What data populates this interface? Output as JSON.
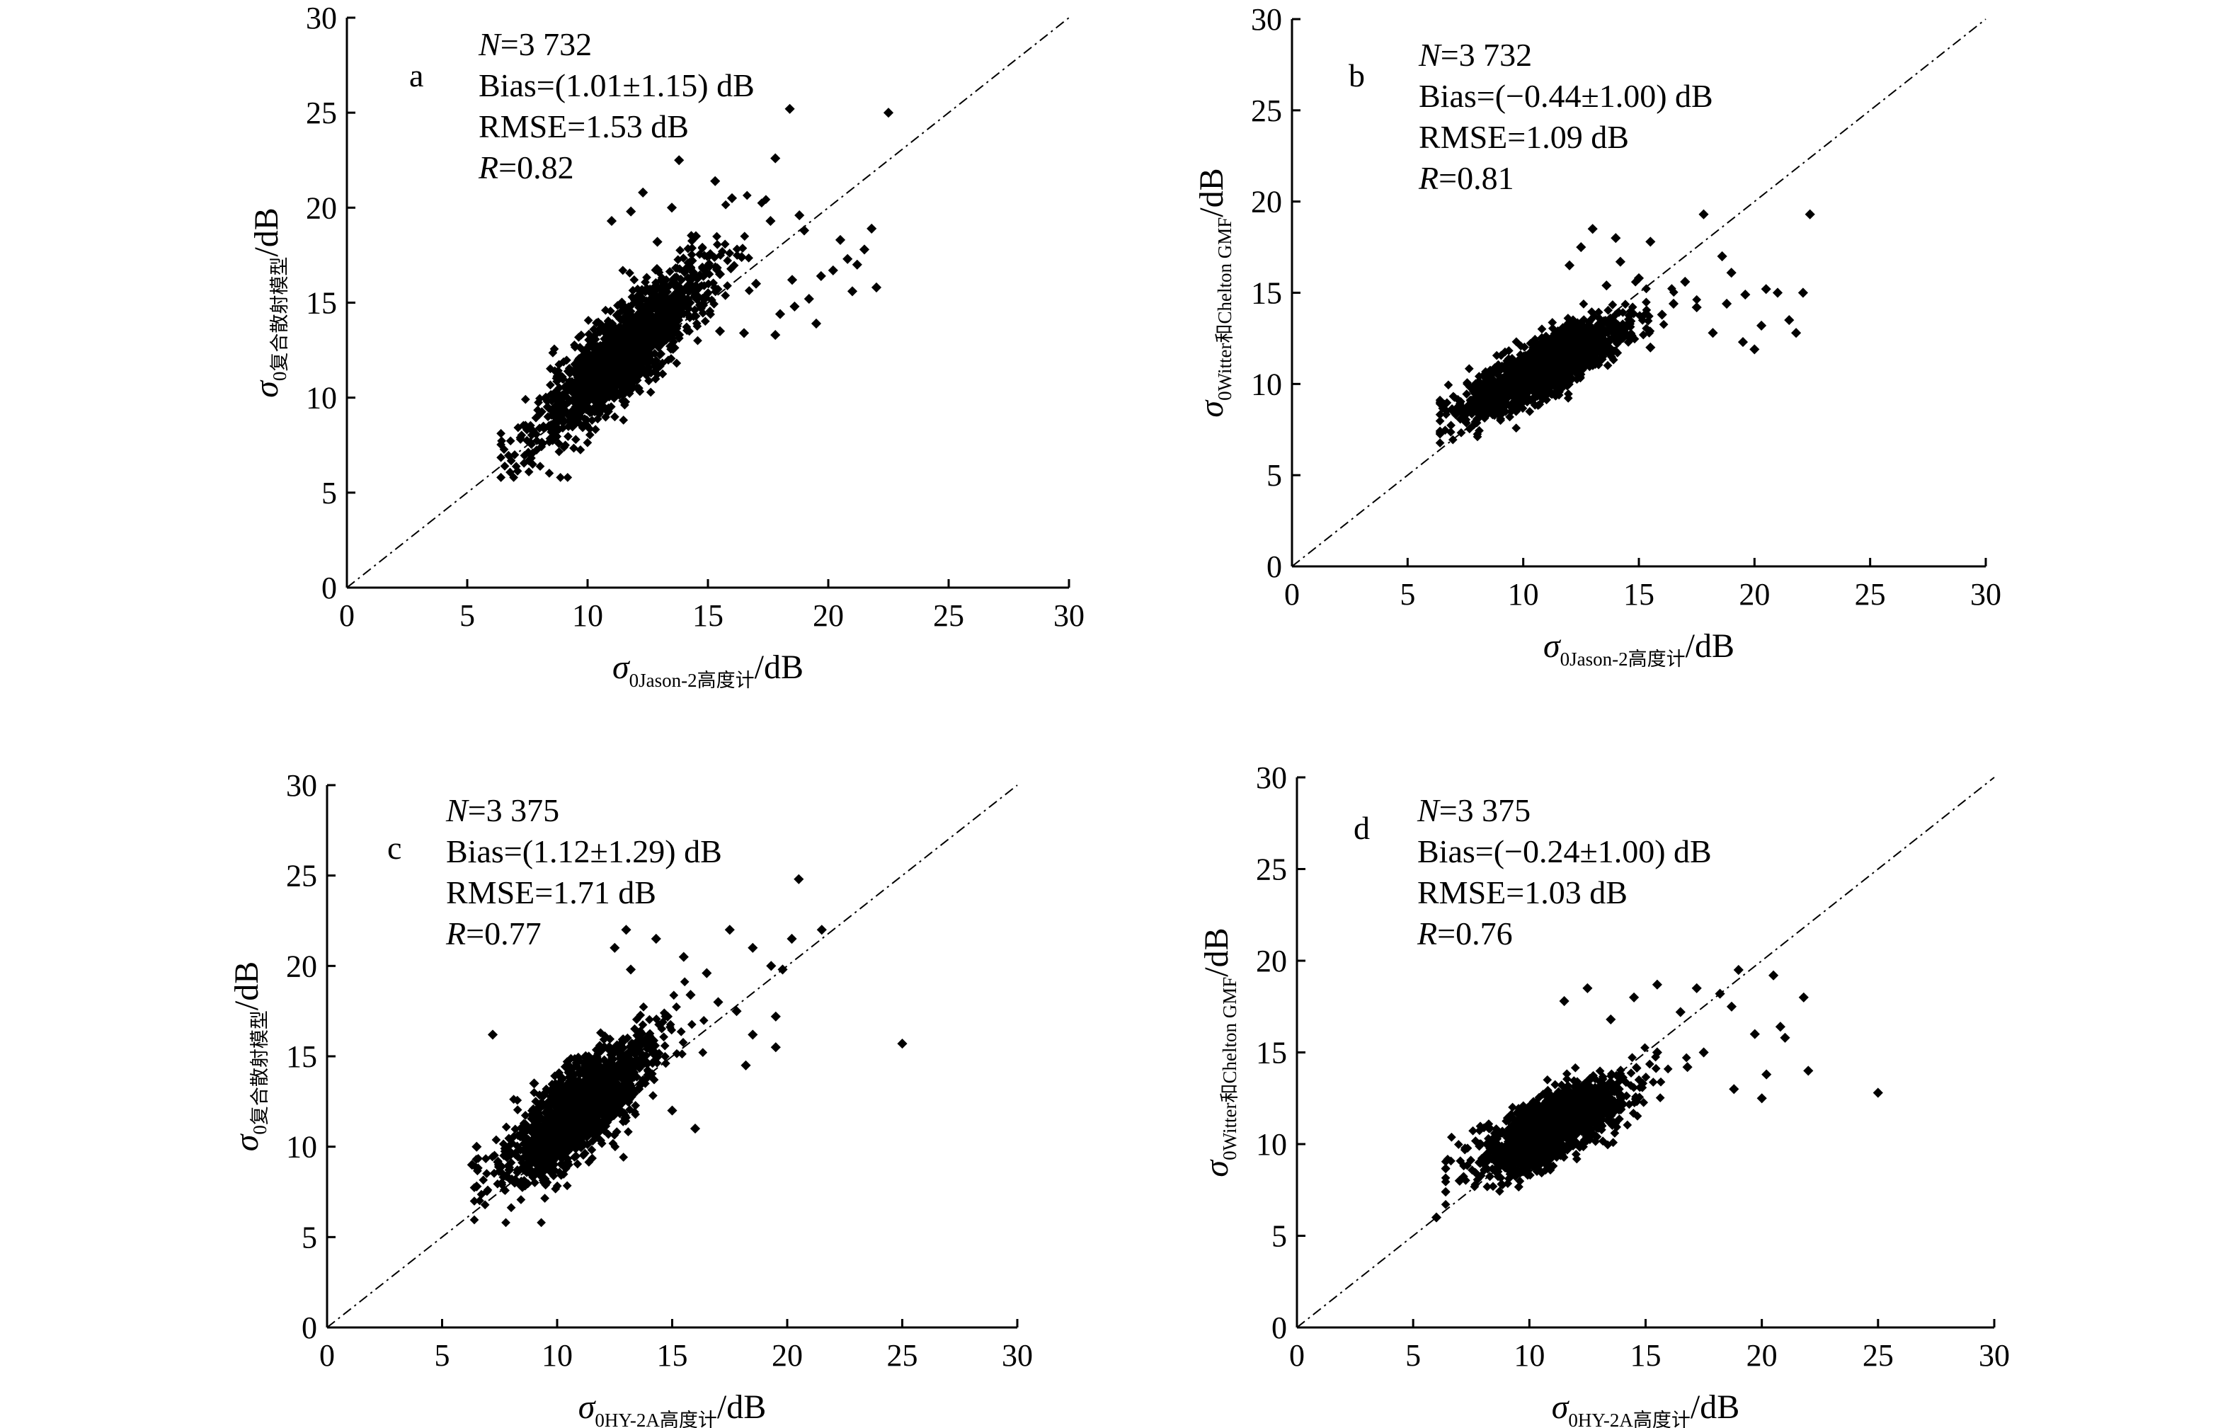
{
  "chart_data": [
    {
      "type": "scatter",
      "panel_label": "a",
      "annotations": {
        "n": "3 732",
        "bias": "(1.01±1.15) dB",
        "rmse": "1.53 dB",
        "r": "0.82"
      },
      "xlabel": {
        "symbol": "σ",
        "subscript": "0Jason-2高度计",
        "unit": "/dB"
      },
      "ylabel": {
        "symbol": "σ",
        "subscript": "0复合散射模型",
        "unit": "/dB"
      },
      "xlim": [
        0,
        30
      ],
      "ylim": [
        0,
        30
      ],
      "xticks": [
        0,
        5,
        10,
        15,
        20,
        25,
        30
      ],
      "yticks": [
        0,
        5,
        10,
        15,
        20,
        25,
        30
      ],
      "reference_line": "1:1",
      "cloud": {
        "x_mean": 11.6,
        "x_sd": 1.7,
        "slope": 1.1,
        "intercept": -0.2,
        "noise": 1.15,
        "dense_count": 1700
      },
      "points": [
        [
          13.8,
          22.5
        ],
        [
          15.3,
          21.4
        ],
        [
          17.8,
          22.6
        ],
        [
          18.4,
          25.2
        ],
        [
          22.5,
          25.0
        ],
        [
          16.0,
          20.5
        ],
        [
          17.6,
          19.3
        ],
        [
          18.8,
          19.6
        ],
        [
          19.0,
          18.8
        ],
        [
          20.5,
          18.3
        ],
        [
          21.2,
          17.0
        ],
        [
          21.5,
          17.8
        ],
        [
          21.8,
          18.9
        ],
        [
          22.0,
          15.8
        ],
        [
          21.0,
          15.6
        ],
        [
          19.7,
          16.4
        ],
        [
          19.2,
          15.2
        ],
        [
          18.5,
          16.2
        ],
        [
          18.0,
          14.4
        ],
        [
          20.2,
          16.7
        ],
        [
          17.0,
          16.0
        ],
        [
          16.4,
          17.4
        ],
        [
          15.5,
          16.5
        ],
        [
          14.8,
          16.8
        ],
        [
          13.5,
          20.0
        ],
        [
          14.5,
          18.5
        ],
        [
          12.9,
          18.2
        ],
        [
          11.8,
          19.8
        ],
        [
          11.0,
          19.3
        ],
        [
          12.3,
          20.8
        ],
        [
          16.5,
          13.4
        ],
        [
          15.5,
          13.5
        ],
        [
          17.8,
          13.3
        ],
        [
          18.6,
          14.8
        ],
        [
          19.5,
          13.9
        ],
        [
          20.8,
          17.3
        ]
      ]
    },
    {
      "type": "scatter",
      "panel_label": "b",
      "annotations": {
        "n": "3 732",
        "bias": "(−0.44±1.00) dB",
        "rmse": "1.09 dB",
        "r": "0.81"
      },
      "xlabel": {
        "symbol": "σ",
        "subscript": "0Jason-2高度计",
        "unit": "/dB"
      },
      "ylabel": {
        "symbol": "σ",
        "subscript": "0Witter和Chelton GMF",
        "unit": "/dB"
      },
      "xlim": [
        0,
        30
      ],
      "ylim": [
        0,
        30
      ],
      "xticks": [
        0,
        5,
        10,
        15,
        20,
        25,
        30
      ],
      "yticks": [
        0,
        5,
        10,
        15,
        20,
        25,
        30
      ],
      "reference_line": "1:1",
      "cloud": {
        "x_mean": 11.0,
        "x_sd": 1.7,
        "slope": 0.62,
        "intercept": 4.1,
        "noise": 0.75,
        "dense_count": 1700
      },
      "points": [
        [
          13.0,
          18.5
        ],
        [
          14.0,
          18.0
        ],
        [
          12.5,
          17.5
        ],
        [
          15.5,
          17.8
        ],
        [
          17.8,
          19.3
        ],
        [
          18.6,
          17.0
        ],
        [
          19.0,
          16.1
        ],
        [
          19.6,
          14.9
        ],
        [
          20.5,
          15.2
        ],
        [
          21.0,
          15.0
        ],
        [
          21.5,
          13.5
        ],
        [
          22.4,
          19.3
        ],
        [
          22.1,
          15.0
        ],
        [
          20.3,
          13.2
        ],
        [
          19.5,
          12.3
        ],
        [
          18.2,
          12.8
        ],
        [
          17.0,
          15.6
        ],
        [
          16.5,
          14.4
        ],
        [
          15.5,
          12.0
        ],
        [
          14.2,
          16.7
        ],
        [
          13.6,
          15.4
        ],
        [
          16.0,
          13.8
        ],
        [
          17.5,
          14.2
        ],
        [
          20.0,
          11.9
        ],
        [
          21.8,
          12.8
        ],
        [
          18.8,
          14.4
        ],
        [
          12.0,
          16.5
        ],
        [
          15.0,
          15.8
        ]
      ]
    },
    {
      "type": "scatter",
      "panel_label": "c",
      "annotations": {
        "n": "3 375",
        "bias": "(1.12±1.29) dB",
        "rmse": "1.71 dB",
        "r": "0.77"
      },
      "xlabel": {
        "symbol": "σ",
        "subscript": "0HY-2A高度计",
        "unit": "/dB"
      },
      "ylabel": {
        "symbol": "σ",
        "subscript": "0复合散射模型",
        "unit": "/dB"
      },
      "xlim": [
        0,
        30
      ],
      "ylim": [
        0,
        30
      ],
      "xticks": [
        0,
        5,
        10,
        15,
        20,
        25,
        30
      ],
      "yticks": [
        0,
        5,
        10,
        15,
        20,
        25,
        30
      ],
      "reference_line": "1:1",
      "cloud": {
        "x_mean": 11.0,
        "x_sd": 1.5,
        "slope": 1.0,
        "intercept": 1.1,
        "noise": 1.25,
        "dense_count": 1600
      },
      "points": [
        [
          20.5,
          24.8
        ],
        [
          25.0,
          15.7
        ],
        [
          19.3,
          20.0
        ],
        [
          19.8,
          19.8
        ],
        [
          18.5,
          21.0
        ],
        [
          17.5,
          22.0
        ],
        [
          20.2,
          21.5
        ],
        [
          21.5,
          22.0
        ],
        [
          13.0,
          22.0
        ],
        [
          14.3,
          21.5
        ],
        [
          12.5,
          21.0
        ],
        [
          15.5,
          20.5
        ],
        [
          16.5,
          19.6
        ],
        [
          17.0,
          18.0
        ],
        [
          17.8,
          17.5
        ],
        [
          18.5,
          16.2
        ],
        [
          19.5,
          17.2
        ],
        [
          19.5,
          15.5
        ],
        [
          18.2,
          14.5
        ],
        [
          6.5,
          10.0
        ],
        [
          7.2,
          16.2
        ],
        [
          9.0,
          13.5
        ],
        [
          16.0,
          11.0
        ],
        [
          15.0,
          12.0
        ],
        [
          6.5,
          7.8
        ],
        [
          6.3,
          9.0
        ],
        [
          14.8,
          17.2
        ],
        [
          13.2,
          19.8
        ],
        [
          15.8,
          18.4
        ]
      ]
    },
    {
      "type": "scatter",
      "panel_label": "d",
      "annotations": {
        "n": "3 375",
        "bias": "(−0.24±1.00) dB",
        "rmse": "1.03 dB",
        "r": "0.76"
      },
      "xlabel": {
        "symbol": "σ",
        "subscript": "0HY-2A高度计",
        "unit": "/dB"
      },
      "ylabel": {
        "symbol": "σ",
        "subscript": "0Witter和Chelton GMF",
        "unit": "/dB"
      },
      "xlim": [
        0,
        30
      ],
      "ylim": [
        0,
        30
      ],
      "xticks": [
        0,
        5,
        10,
        15,
        20,
        25,
        30
      ],
      "yticks": [
        0,
        5,
        10,
        15,
        20,
        25,
        30
      ],
      "reference_line": "1:1",
      "cloud": {
        "x_mean": 11.0,
        "x_sd": 1.5,
        "slope": 0.6,
        "intercept": 4.3,
        "noise": 0.85,
        "dense_count": 1600
      },
      "points": [
        [
          25.0,
          12.8
        ],
        [
          20.5,
          19.2
        ],
        [
          21.8,
          18.0
        ],
        [
          19.0,
          19.5
        ],
        [
          18.2,
          18.2
        ],
        [
          17.2,
          18.5
        ],
        [
          16.5,
          17.2
        ],
        [
          15.5,
          18.7
        ],
        [
          14.5,
          18.0
        ],
        [
          12.5,
          18.5
        ],
        [
          11.5,
          17.8
        ],
        [
          13.5,
          16.8
        ],
        [
          18.7,
          17.5
        ],
        [
          19.7,
          16.0
        ],
        [
          20.8,
          16.4
        ],
        [
          20.2,
          13.8
        ],
        [
          21.0,
          15.8
        ],
        [
          18.8,
          13.0
        ],
        [
          20.0,
          12.5
        ],
        [
          16.8,
          14.2
        ],
        [
          15.5,
          15.0
        ],
        [
          6.0,
          6.0
        ],
        [
          7.0,
          8.0
        ],
        [
          22.0,
          14.0
        ],
        [
          17.5,
          15.0
        ]
      ]
    }
  ]
}
